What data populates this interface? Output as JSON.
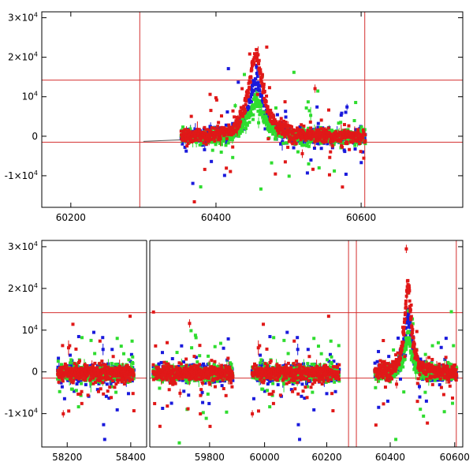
{
  "chart_data": [
    {
      "type": "scatter",
      "panel": "top",
      "x_ticks": [
        "60200",
        "60400",
        "60600"
      ],
      "x_tick_values": [
        60200,
        60400,
        60600
      ],
      "xlim": [
        60160,
        60740
      ],
      "y_ticks": [
        {
          "base": "3×10",
          "exp": "4",
          "value": 30000
        },
        {
          "base": "2×10",
          "exp": "4",
          "value": 20000
        },
        {
          "base": "10",
          "exp": "4",
          "value": 10000
        },
        {
          "base": "0",
          "exp": "",
          "value": 0
        },
        {
          "base": "-1×10",
          "exp": "4",
          "value": -10000
        }
      ],
      "ylim": [
        -18000,
        31500
      ],
      "h_lines": [
        14200,
        -1500
      ],
      "v_lines": [
        60295,
        60605
      ],
      "grid": false,
      "series": [
        {
          "color": "#1a1adc",
          "center": 60455,
          "peak": 13800,
          "start": 60352,
          "end": 60606
        },
        {
          "color": "#2fdc2f",
          "center": 60455,
          "peak": 9000,
          "start": 60352,
          "end": 60606
        },
        {
          "color": "#e01818",
          "center": 60455,
          "peak": 21000,
          "start": 60352,
          "end": 60606
        }
      ]
    },
    {
      "type": "scatter",
      "panel": "bottom",
      "x_ticks": [
        "58200",
        "58400",
        "59800",
        "60000",
        "60200",
        "60400",
        "60600"
      ],
      "y_ticks": [
        {
          "base": "3×10",
          "exp": "4",
          "value": 30000
        },
        {
          "base": "2×10",
          "exp": "4",
          "value": 20000
        },
        {
          "base": "10",
          "exp": "4",
          "value": 10000
        },
        {
          "base": "0",
          "exp": "",
          "value": 0
        },
        {
          "base": "-1×10",
          "exp": "4",
          "value": -10000
        }
      ],
      "ylim": [
        -18000,
        31500
      ],
      "h_lines": [
        14200,
        -1500
      ],
      "grid": false,
      "segments": [
        {
          "xlim": [
            58120,
            58450
          ],
          "x_ticks": [
            58200,
            58400
          ],
          "data_range": [
            58170,
            58410
          ]
        },
        {
          "xlim": [
            59620,
            59900
          ],
          "x_ticks": [
            59800
          ],
          "data_range": [
            59630,
            59870
          ]
        },
        {
          "xlim": [
            59930,
            60290
          ],
          "x_ticks": [
            60000,
            60200
          ],
          "data_range": [
            59960,
            60240
          ],
          "v_lines": [
            60270
          ]
        },
        {
          "xlim": [
            60290,
            60625
          ],
          "x_ticks": [
            60400,
            60600
          ],
          "data_range": [
            60352,
            60606
          ],
          "v_lines": [
            60295,
            60605
          ],
          "peak_center": 60455
        }
      ],
      "series": [
        {
          "color": "#1a1adc",
          "peak": 13800
        },
        {
          "color": "#2fdc2f",
          "peak": 9000
        },
        {
          "color": "#e01818",
          "peak": 21000
        }
      ]
    }
  ]
}
